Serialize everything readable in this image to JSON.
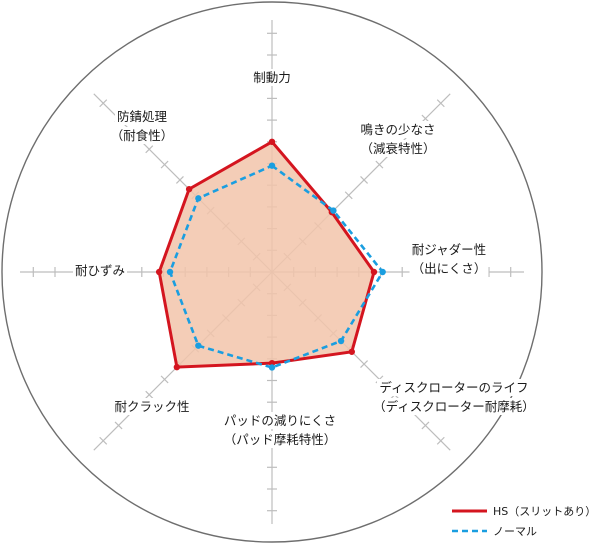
{
  "chart_data": {
    "type": "radar",
    "axes": [
      {
        "label": [
          "制動力"
        ]
      },
      {
        "label": [
          "鳴きの少なさ",
          "（減衰特性）"
        ]
      },
      {
        "label": [
          "耐ジャダー性",
          "（出にくさ）"
        ]
      },
      {
        "label": [
          "ディスクローターのライフ",
          "（ディスクローター耐摩耗）"
        ]
      },
      {
        "label": [
          "パッドの減りにくさ",
          "（パッド摩耗特性）"
        ]
      },
      {
        "label": [
          "耐クラック性"
        ]
      },
      {
        "label": [
          "耐ひずみ"
        ]
      },
      {
        "label": [
          "防錆処理",
          "（耐食性）"
        ]
      }
    ],
    "scale_max": 10,
    "series": [
      {
        "name": "HS（スリットあり）",
        "color": "#d4151f",
        "style": "solid",
        "fill": "#f2c4aa",
        "values": [
          6,
          3.9,
          4.7,
          5.2,
          4.2,
          6.2,
          5.2,
          5.4
        ]
      },
      {
        "name": "ノーマル",
        "color": "#1a9ee0",
        "style": "dashed",
        "values": [
          4.9,
          4.0,
          5.1,
          4.5,
          4.4,
          4.8,
          4.7,
          4.8
        ]
      }
    ],
    "grid": false,
    "legend_position": "bottom-right"
  }
}
